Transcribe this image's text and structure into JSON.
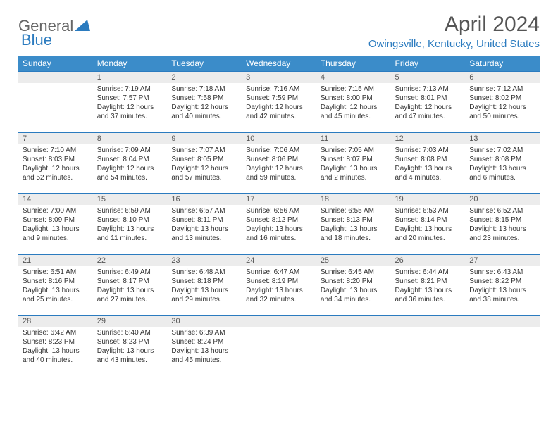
{
  "logo": {
    "text1": "General",
    "text2": "Blue",
    "triangle_color": "#2b7bbf"
  },
  "title": "April 2024",
  "location": "Owingsville, Kentucky, United States",
  "colors": {
    "header_bg": "#3b8cc9",
    "accent": "#2b7bbf",
    "daybg": "#ececec"
  },
  "weekdays": [
    "Sunday",
    "Monday",
    "Tuesday",
    "Wednesday",
    "Thursday",
    "Friday",
    "Saturday"
  ],
  "weeks": [
    {
      "nums": [
        "",
        "1",
        "2",
        "3",
        "4",
        "5",
        "6"
      ],
      "cells": [
        "",
        "Sunrise: 7:19 AM\nSunset: 7:57 PM\nDaylight: 12 hours and 37 minutes.",
        "Sunrise: 7:18 AM\nSunset: 7:58 PM\nDaylight: 12 hours and 40 minutes.",
        "Sunrise: 7:16 AM\nSunset: 7:59 PM\nDaylight: 12 hours and 42 minutes.",
        "Sunrise: 7:15 AM\nSunset: 8:00 PM\nDaylight: 12 hours and 45 minutes.",
        "Sunrise: 7:13 AM\nSunset: 8:01 PM\nDaylight: 12 hours and 47 minutes.",
        "Sunrise: 7:12 AM\nSunset: 8:02 PM\nDaylight: 12 hours and 50 minutes."
      ]
    },
    {
      "nums": [
        "7",
        "8",
        "9",
        "10",
        "11",
        "12",
        "13"
      ],
      "cells": [
        "Sunrise: 7:10 AM\nSunset: 8:03 PM\nDaylight: 12 hours and 52 minutes.",
        "Sunrise: 7:09 AM\nSunset: 8:04 PM\nDaylight: 12 hours and 54 minutes.",
        "Sunrise: 7:07 AM\nSunset: 8:05 PM\nDaylight: 12 hours and 57 minutes.",
        "Sunrise: 7:06 AM\nSunset: 8:06 PM\nDaylight: 12 hours and 59 minutes.",
        "Sunrise: 7:05 AM\nSunset: 8:07 PM\nDaylight: 13 hours and 2 minutes.",
        "Sunrise: 7:03 AM\nSunset: 8:08 PM\nDaylight: 13 hours and 4 minutes.",
        "Sunrise: 7:02 AM\nSunset: 8:08 PM\nDaylight: 13 hours and 6 minutes."
      ]
    },
    {
      "nums": [
        "14",
        "15",
        "16",
        "17",
        "18",
        "19",
        "20"
      ],
      "cells": [
        "Sunrise: 7:00 AM\nSunset: 8:09 PM\nDaylight: 13 hours and 9 minutes.",
        "Sunrise: 6:59 AM\nSunset: 8:10 PM\nDaylight: 13 hours and 11 minutes.",
        "Sunrise: 6:57 AM\nSunset: 8:11 PM\nDaylight: 13 hours and 13 minutes.",
        "Sunrise: 6:56 AM\nSunset: 8:12 PM\nDaylight: 13 hours and 16 minutes.",
        "Sunrise: 6:55 AM\nSunset: 8:13 PM\nDaylight: 13 hours and 18 minutes.",
        "Sunrise: 6:53 AM\nSunset: 8:14 PM\nDaylight: 13 hours and 20 minutes.",
        "Sunrise: 6:52 AM\nSunset: 8:15 PM\nDaylight: 13 hours and 23 minutes."
      ]
    },
    {
      "nums": [
        "21",
        "22",
        "23",
        "24",
        "25",
        "26",
        "27"
      ],
      "cells": [
        "Sunrise: 6:51 AM\nSunset: 8:16 PM\nDaylight: 13 hours and 25 minutes.",
        "Sunrise: 6:49 AM\nSunset: 8:17 PM\nDaylight: 13 hours and 27 minutes.",
        "Sunrise: 6:48 AM\nSunset: 8:18 PM\nDaylight: 13 hours and 29 minutes.",
        "Sunrise: 6:47 AM\nSunset: 8:19 PM\nDaylight: 13 hours and 32 minutes.",
        "Sunrise: 6:45 AM\nSunset: 8:20 PM\nDaylight: 13 hours and 34 minutes.",
        "Sunrise: 6:44 AM\nSunset: 8:21 PM\nDaylight: 13 hours and 36 minutes.",
        "Sunrise: 6:43 AM\nSunset: 8:22 PM\nDaylight: 13 hours and 38 minutes."
      ]
    },
    {
      "nums": [
        "28",
        "29",
        "30",
        "",
        "",
        "",
        ""
      ],
      "cells": [
        "Sunrise: 6:42 AM\nSunset: 8:23 PM\nDaylight: 13 hours and 40 minutes.",
        "Sunrise: 6:40 AM\nSunset: 8:23 PM\nDaylight: 13 hours and 43 minutes.",
        "Sunrise: 6:39 AM\nSunset: 8:24 PM\nDaylight: 13 hours and 45 minutes.",
        "",
        "",
        "",
        ""
      ]
    }
  ]
}
